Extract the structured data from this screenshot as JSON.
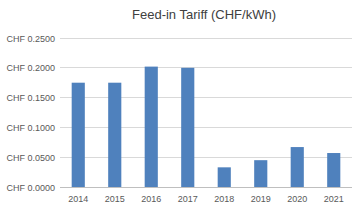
{
  "chart_data": {
    "type": "bar",
    "title": "Feed-in Tariff (CHF/kWh)",
    "categories": [
      "2014",
      "2015",
      "2016",
      "2017",
      "2018",
      "2019",
      "2020",
      "2021"
    ],
    "values": [
      0.175,
      0.175,
      0.202,
      0.2,
      0.033,
      0.045,
      0.067,
      0.057
    ],
    "color": "#4f81bd",
    "ylim": [
      0,
      0.25
    ],
    "yticks": [
      {
        "value": 0,
        "label": "CHF 0.0000"
      },
      {
        "value": 0.05,
        "label": "CHF 0.0500"
      },
      {
        "value": 0.1,
        "label": "CHF 0.1000"
      },
      {
        "value": 0.15,
        "label": "CHF 0.1500"
      },
      {
        "value": 0.2,
        "label": "CHF 0.2000"
      },
      {
        "value": 0.25,
        "label": "CHF 0.2500"
      }
    ],
    "grid": true
  }
}
